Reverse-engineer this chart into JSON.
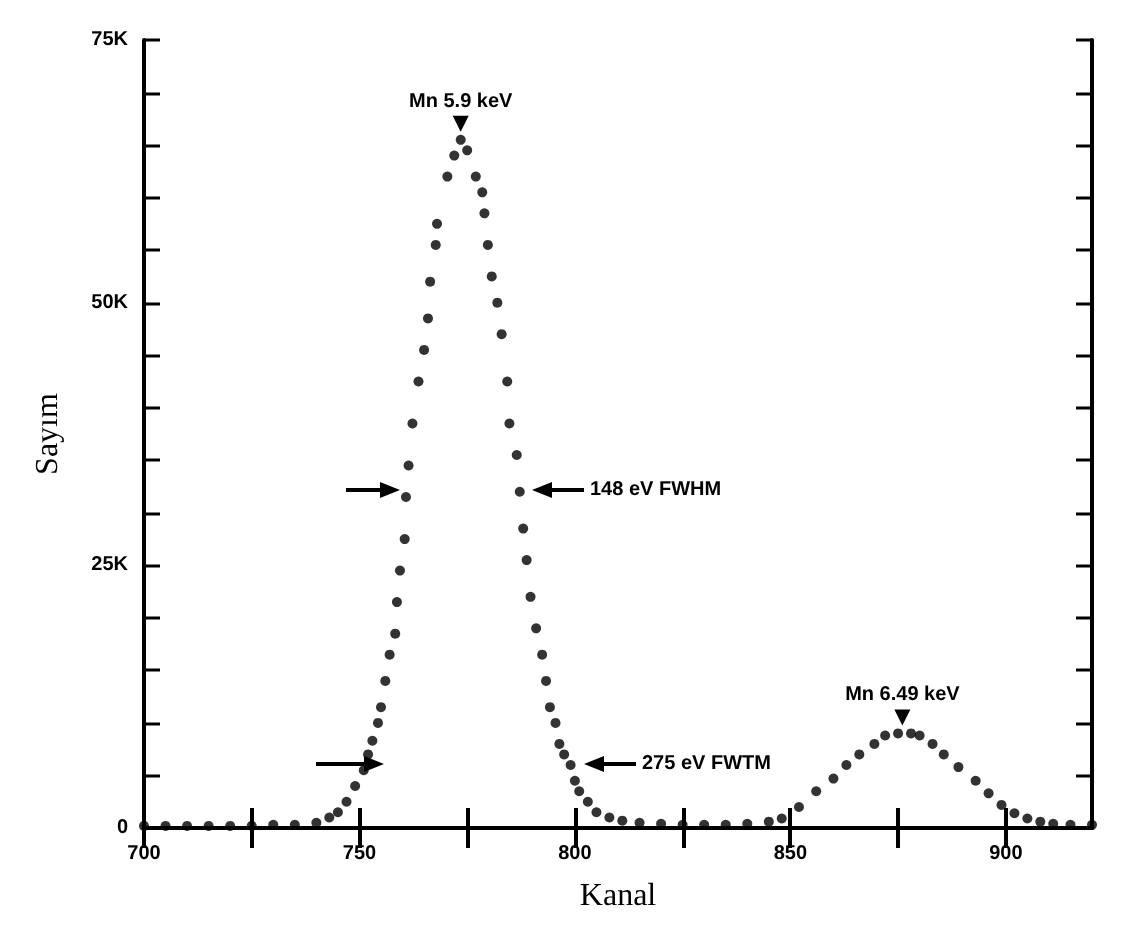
{
  "chart_data": {
    "type": "scatter",
    "xlabel": "Kanal",
    "ylabel": "Sayım",
    "marker": "circle",
    "xlim": [
      700,
      920
    ],
    "ylim": [
      0,
      75000
    ],
    "xticks": [
      700,
      {
        "value": 725,
        "label": null
      },
      750,
      {
        "value": 775,
        "label": null
      },
      800,
      {
        "value": 825,
        "label": null
      },
      850,
      {
        "value": 875,
        "label": null
      },
      900
    ],
    "yticks": [
      0,
      {
        "value": 5000,
        "label": null
      },
      {
        "value": 10000,
        "label": null
      },
      {
        "value": 15000,
        "label": null
      },
      {
        "value": 20000,
        "label": null
      },
      {
        "value": 25000,
        "label": "25K"
      },
      {
        "value": 30000,
        "label": null
      },
      {
        "value": 35000,
        "label": null
      },
      {
        "value": 40000,
        "label": null
      },
      {
        "value": 45000,
        "label": null
      },
      {
        "value": 50000,
        "label": "50K"
      },
      {
        "value": 55000,
        "label": null
      },
      {
        "value": 60000,
        "label": null
      },
      {
        "value": 65000,
        "label": null
      },
      {
        "value": 70000,
        "label": null
      },
      {
        "value": 75000,
        "label": "75K"
      }
    ],
    "series": [
      {
        "color": "#000000",
        "x": [
          700,
          705,
          710,
          715,
          720,
          725,
          730,
          735,
          740,
          743,
          745,
          747,
          749,
          751,
          752,
          753,
          754.3,
          755,
          756,
          757,
          758.3,
          758.7,
          759.4,
          760.5,
          760.8,
          761.4,
          762.3,
          763.7,
          765,
          765.9,
          766.4,
          767.7,
          768,
          770.4,
          772,
          773.5,
          775,
          777,
          778.5,
          779,
          779.8,
          780.7,
          782,
          783,
          784.3,
          784.8,
          786.5,
          787.2,
          788,
          788.8,
          789.7,
          791,
          792.4,
          793.3,
          794.2,
          795.5,
          796.4,
          797.5,
          799,
          800,
          801,
          803,
          805,
          808,
          811,
          815,
          820,
          825,
          830,
          835,
          840,
          845,
          848,
          852,
          856,
          860,
          863,
          866,
          869.5,
          872,
          875,
          878,
          880,
          883,
          885.6,
          889,
          893,
          896,
          899,
          902,
          905,
          908,
          911,
          915,
          920
        ],
        "values": [
          200,
          200,
          200,
          200,
          200,
          200,
          300,
          300,
          500,
          1000,
          1500,
          2500,
          4000,
          5500,
          7000,
          8300,
          10000,
          11500,
          14000,
          16500,
          18500,
          21500,
          24500,
          27500,
          31500,
          34500,
          38500,
          42500,
          45500,
          48500,
          52000,
          55500,
          57500,
          62000,
          64000,
          65500,
          64500,
          62000,
          60500,
          58500,
          55500,
          52500,
          50000,
          47000,
          42500,
          38500,
          35500,
          32000,
          28500,
          25500,
          22000,
          19000,
          16500,
          14000,
          11500,
          10000,
          8000,
          7000,
          6000,
          4500,
          3500,
          2500,
          1500,
          1000,
          700,
          500,
          400,
          300,
          300,
          300,
          400,
          600,
          900,
          2000,
          3500,
          4700,
          6000,
          7000,
          8000,
          8800,
          9000,
          9000,
          8800,
          8000,
          7000,
          5800,
          4500,
          3300,
          2200,
          1400,
          900,
          600,
          400,
          300,
          300
        ]
      }
    ],
    "annotations": [
      {
        "text": "Mn 5.9 keV",
        "x": 773.5,
        "y": 65500
      },
      "148 eV FWHM",
      "275 eV FWTM",
      {
        "text": "Mn 6.49 keV",
        "x": 876,
        "y": 9000
      }
    ]
  }
}
